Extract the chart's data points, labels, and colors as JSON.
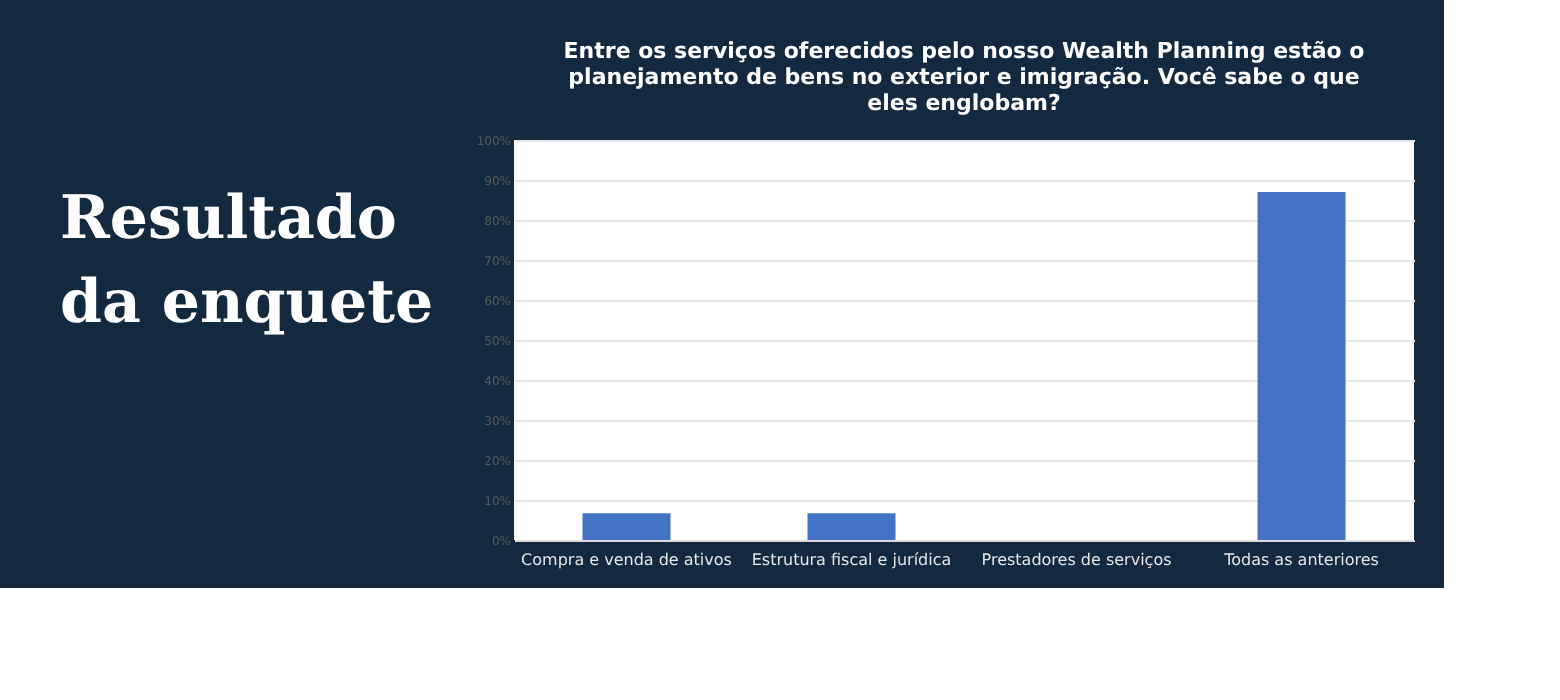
{
  "chart_data": {
    "type": "bar",
    "title": [
      "Entre os serviços oferecidos pelo nosso Wealth Planning estão o",
      "planejamento de bens no exterior e imigração. Você sabe o que",
      "eles englobam?"
    ],
    "annotations": [
      "Resultado",
      "da enquete"
    ],
    "categories": [
      "Compra e venda de ativos",
      "Estrutura fiscal e jurídica",
      "Prestadores de serviços",
      "Todas as anteriores"
    ],
    "values": [
      6.7,
      6.7,
      0,
      87
    ],
    "color": "#4472c4",
    "ylim": [
      0,
      100
    ],
    "yticks": [
      {
        "value": 0,
        "label": "0%"
      },
      {
        "value": 10,
        "label": "10%"
      },
      {
        "value": 20,
        "label": "20%"
      },
      {
        "value": 30,
        "label": "30%"
      },
      {
        "value": 40,
        "label": "40%"
      },
      {
        "value": 50,
        "label": "50%"
      },
      {
        "value": 60,
        "label": "60%"
      },
      {
        "value": 70,
        "label": "70%"
      },
      {
        "value": 80,
        "label": "80%"
      },
      {
        "value": 90,
        "label": "90%"
      },
      {
        "value": 100,
        "label": "100%"
      }
    ],
    "grid": "y"
  }
}
